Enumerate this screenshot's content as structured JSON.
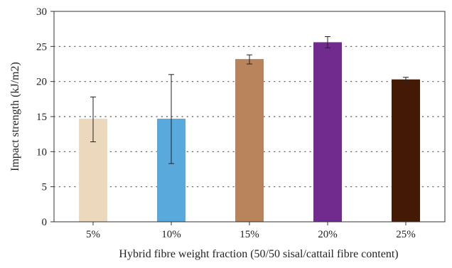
{
  "chart_data": {
    "type": "bar",
    "categories": [
      "5%",
      "10%",
      "15%",
      "20%",
      "25%"
    ],
    "values": [
      14.7,
      14.7,
      23.2,
      25.6,
      20.3
    ],
    "error_low": [
      11.4,
      8.3,
      22.5,
      24.8,
      20.0
    ],
    "error_high": [
      17.8,
      21.0,
      23.8,
      26.4,
      20.6
    ],
    "colors": [
      "#ecd9bd",
      "#5aa9dd",
      "#b9835b",
      "#712b8f",
      "#441a06"
    ],
    "xlabel": "Hybrid fibre weight fraction (50/50 sisal/cattail fibre content)",
    "ylabel": "Impact strength (kJ/m2)",
    "ylim": [
      0,
      30
    ],
    "yticks": [
      "0",
      "5",
      "10",
      "15",
      "20",
      "25",
      "30"
    ],
    "ytick_values": [
      0,
      5,
      10,
      15,
      20,
      25,
      30
    ],
    "grid": "horizontal-dotted",
    "legend": "none"
  }
}
